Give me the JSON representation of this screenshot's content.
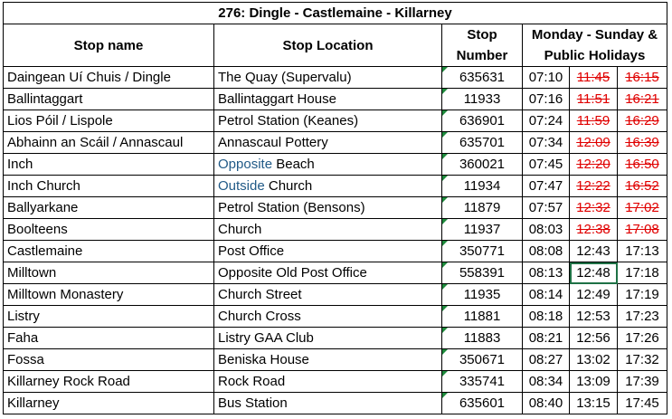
{
  "title": "276: Dingle - Castlemaine - Killarney",
  "headers": {
    "stop_name": "Stop name",
    "stop_location": "Stop Location",
    "stop_number": "Stop Number",
    "schedule": "Monday - Sunday & Public Holidays"
  },
  "cancelled_color": "#e00000",
  "rows": [
    {
      "name": "Daingean Uí Chuis / Dingle",
      "location": "The Quay (Supervalu)",
      "number": "635631",
      "t1": "07:10",
      "t2": "11:45",
      "t3": "16:15",
      "t2_cancelled": true,
      "t3_cancelled": true
    },
    {
      "name": "Ballintaggart",
      "location": "Ballintaggart House",
      "number": "11933",
      "t1": "07:16",
      "t2": "11:51",
      "t3": "16:21",
      "t2_cancelled": true,
      "t3_cancelled": true
    },
    {
      "name": "Lios Póil / Lispole",
      "location": "Petrol Station (Keanes)",
      "number": "636901",
      "t1": "07:24",
      "t2": "11:59",
      "t3": "16:29",
      "t2_cancelled": true,
      "t3_cancelled": true
    },
    {
      "name": "Abhainn an Scáil / Annascaul",
      "location": "Annascaul Pottery",
      "number": "635701",
      "t1": "07:34",
      "t2": "12:09",
      "t3": "16:39",
      "t2_cancelled": true,
      "t3_cancelled": true
    },
    {
      "name": "Inch",
      "location_prefix": "Opposite",
      "location": "Beach",
      "number": "360021",
      "t1": "07:45",
      "t2": "12:20",
      "t3": "16:50",
      "t2_cancelled": true,
      "t3_cancelled": true
    },
    {
      "name": "Inch Church",
      "location_prefix": "Outside",
      "location": "Church",
      "number": "11934",
      "t1": "07:47",
      "t2": "12:22",
      "t3": "16:52",
      "t2_cancelled": true,
      "t3_cancelled": true
    },
    {
      "name": "Ballyarkane",
      "location": "Petrol Station (Bensons)",
      "number": "11879",
      "t1": "07:57",
      "t2": "12:32",
      "t3": "17:02",
      "t2_cancelled": true,
      "t3_cancelled": true
    },
    {
      "name": "Boolteens",
      "location": "Church",
      "number": "11937",
      "t1": "08:03",
      "t2": "12:38",
      "t3": "17:08",
      "t2_cancelled": true,
      "t3_cancelled": true
    },
    {
      "name": "Castlemaine",
      "location": "Post Office",
      "number": "350771",
      "t1": "08:08",
      "t2": "12:43",
      "t3": "17:13",
      "t2_cancelled": false,
      "t3_cancelled": false
    },
    {
      "name": "Milltown",
      "location": "Opposite Old Post Office",
      "number": "558391",
      "t1": "08:13",
      "t2": "12:48",
      "t3": "17:18",
      "t2_cancelled": false,
      "t3_cancelled": false
    },
    {
      "name": "Milltown Monastery",
      "location": "Church Street",
      "number": "11935",
      "t1": "08:14",
      "t2": "12:49",
      "t3": "17:19",
      "t2_cancelled": false,
      "t3_cancelled": false
    },
    {
      "name": "Listry",
      "location": "Church Cross",
      "number": "11881",
      "t1": "08:18",
      "t2": "12:53",
      "t3": "17:23",
      "t2_cancelled": false,
      "t3_cancelled": false
    },
    {
      "name": "Faha",
      "location": "Listry GAA Club",
      "number": "11883",
      "t1": "08:21",
      "t2": "12:56",
      "t3": "17:26",
      "t2_cancelled": false,
      "t3_cancelled": false
    },
    {
      "name": "Fossa",
      "location": "Beniska House",
      "number": "350671",
      "t1": "08:27",
      "t2": "13:02",
      "t3": "17:32",
      "t2_cancelled": false,
      "t3_cancelled": false
    },
    {
      "name": "Killarney Rock Road",
      "location": "Rock Road",
      "number": "335741",
      "t1": "08:34",
      "t2": "13:09",
      "t3": "17:39",
      "t2_cancelled": false,
      "t3_cancelled": false
    },
    {
      "name": "Killarney",
      "location": "Bus Station",
      "number": "635601",
      "t1": "08:40",
      "t2": "13:15",
      "t3": "17:45",
      "t2_cancelled": false,
      "t3_cancelled": false
    }
  ]
}
